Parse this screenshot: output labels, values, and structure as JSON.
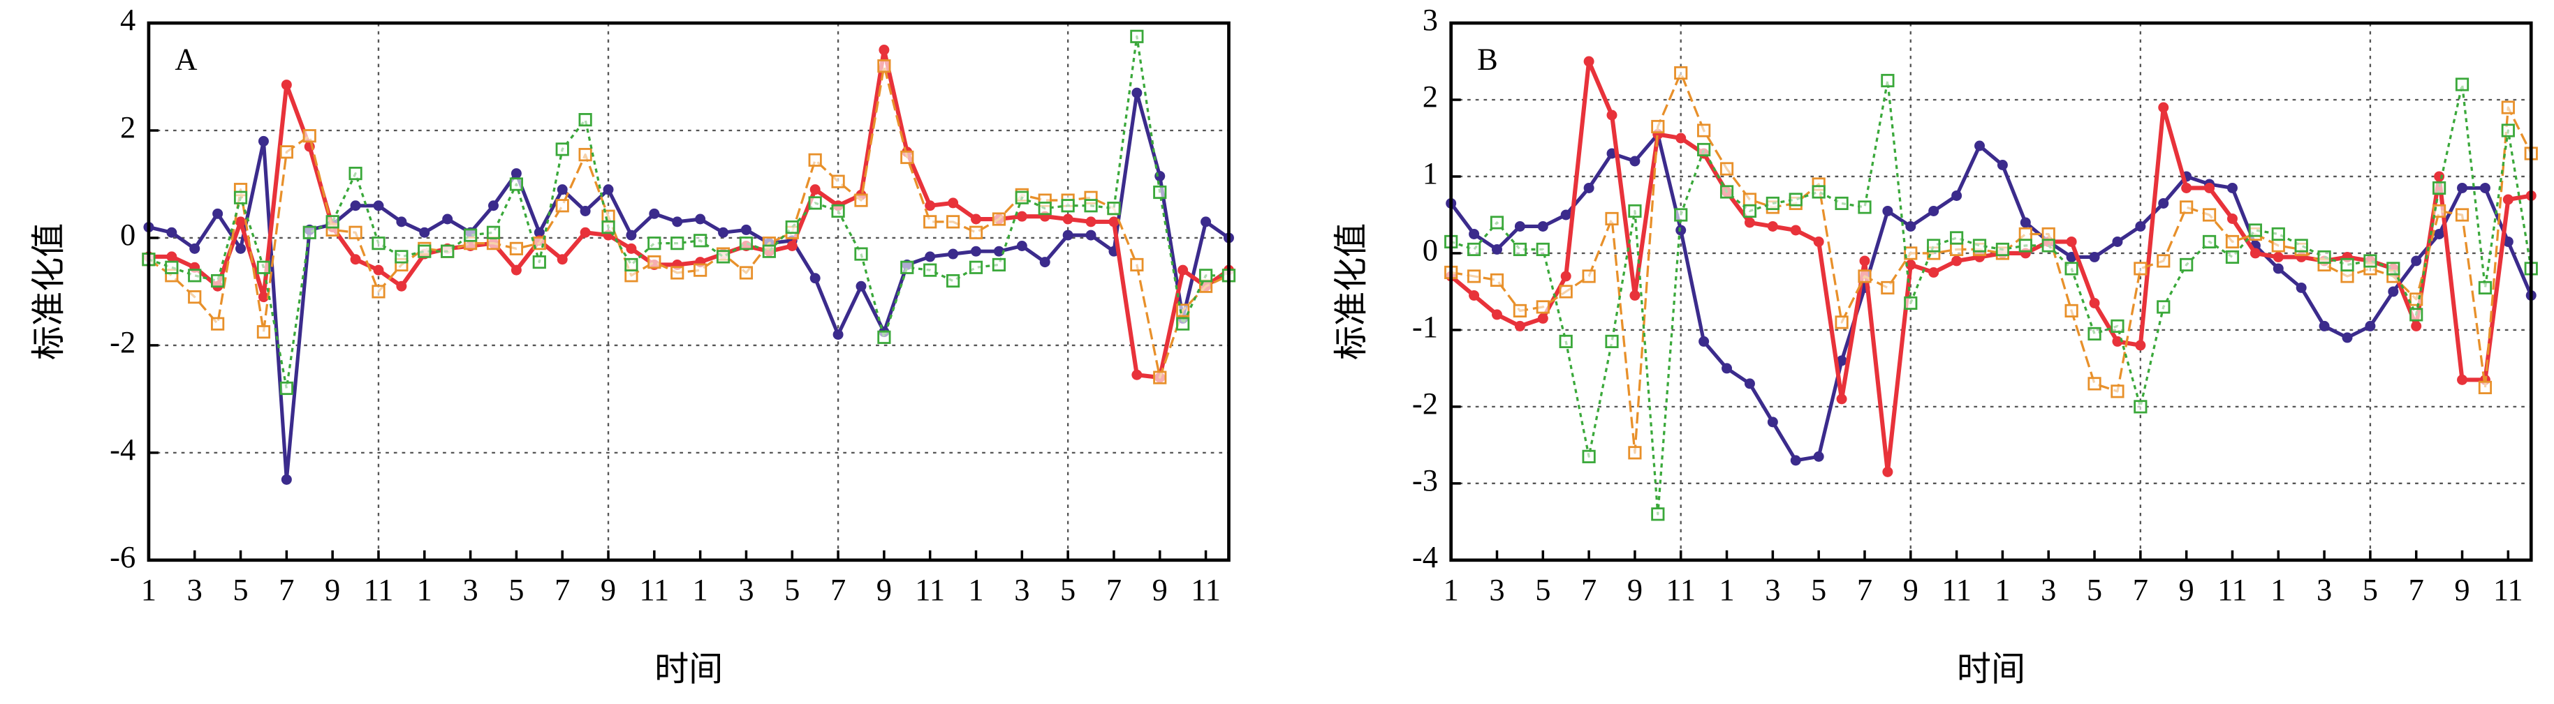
{
  "chart_data": [
    {
      "type": "line",
      "panel_label": "A",
      "ylabel": "标准化值",
      "xlabel": "时间",
      "x": [
        1,
        2,
        3,
        4,
        5,
        6,
        7,
        8,
        9,
        10,
        11,
        12,
        13,
        14,
        15,
        16,
        17,
        18,
        19,
        20,
        21,
        22,
        23,
        24,
        25,
        26,
        27,
        28,
        29,
        30,
        31,
        32,
        33,
        34,
        35,
        36,
        37,
        38,
        39,
        40,
        41,
        42,
        43,
        44,
        45,
        46,
        47,
        48
      ],
      "xlim": [
        1,
        48
      ],
      "xticks": [
        1,
        3,
        5,
        7,
        9,
        11,
        {
          "value": 13,
          "label": "1"
        },
        {
          "value": 15,
          "label": "3"
        },
        {
          "value": 17,
          "label": "5"
        },
        {
          "value": 19,
          "label": "7"
        },
        {
          "value": 21,
          "label": "9"
        },
        {
          "value": 23,
          "label": "11"
        },
        {
          "value": 25,
          "label": "1"
        },
        {
          "value": 27,
          "label": "3"
        },
        {
          "value": 29,
          "label": "5"
        },
        {
          "value": 31,
          "label": "7"
        },
        {
          "value": 33,
          "label": "9"
        },
        {
          "value": 35,
          "label": "11"
        },
        {
          "value": 37,
          "label": "1"
        },
        {
          "value": 39,
          "label": "3"
        },
        {
          "value": 41,
          "label": "5"
        },
        {
          "value": 43,
          "label": "7"
        },
        {
          "value": 45,
          "label": "9"
        },
        {
          "value": 47,
          "label": "11"
        }
      ],
      "xgrid": [
        11,
        21,
        31,
        41
      ],
      "ylim": [
        -6,
        4
      ],
      "yticks": [
        -6,
        -4,
        -2,
        0,
        2,
        4
      ],
      "grid": true,
      "series": [
        {
          "color": "#3b2b8c",
          "marker": "circle",
          "dash": "solid",
          "values": [
            0.2,
            0.1,
            -0.2,
            0.45,
            -0.2,
            1.8,
            -4.5,
            0.15,
            0.25,
            0.6,
            0.6,
            0.3,
            0.1,
            0.35,
            0.1,
            0.6,
            1.2,
            0.1,
            0.9,
            0.5,
            0.9,
            0.05,
            0.45,
            0.3,
            0.35,
            0.1,
            0.15,
            -0.1,
            -0.05,
            -0.75,
            -1.8,
            -0.9,
            -1.75,
            -0.5,
            -0.35,
            -0.3,
            -0.25,
            -0.25,
            -0.15,
            -0.45,
            0.05,
            0.05,
            -0.25,
            2.7,
            1.15,
            -1.5,
            0.3,
            0
          ]
        },
        {
          "color": "#e8323a",
          "marker": "circle",
          "dash": "solid",
          "values": [
            -0.35,
            -0.35,
            -0.55,
            -0.9,
            0.3,
            -1.1,
            2.85,
            1.7,
            0.2,
            -0.4,
            -0.6,
            -0.9,
            -0.3,
            -0.2,
            -0.15,
            -0.1,
            -0.6,
            -0.05,
            -0.4,
            0.1,
            0.05,
            -0.2,
            -0.5,
            -0.5,
            -0.45,
            -0.3,
            -0.15,
            -0.25,
            -0.15,
            0.9,
            0.6,
            0.8,
            3.5,
            1.6,
            0.6,
            0.65,
            0.35,
            0.35,
            0.4,
            0.4,
            0.35,
            0.3,
            0.3,
            -2.55,
            -2.6,
            -0.6,
            -0.9,
            -0.6
          ]
        },
        {
          "color": "#e8902a",
          "marker": "square",
          "dash": "dashed",
          "values": [
            -0.4,
            -0.7,
            -1.1,
            -1.6,
            0.9,
            -1.75,
            1.6,
            1.9,
            0.15,
            0.1,
            -1.0,
            -0.5,
            -0.2,
            -0.25,
            -0.1,
            -0.1,
            -0.2,
            -0.1,
            0.6,
            1.55,
            0.4,
            -0.7,
            -0.45,
            -0.65,
            -0.6,
            -0.3,
            -0.65,
            -0.1,
            0.1,
            1.45,
            1.05,
            0.7,
            3.2,
            1.5,
            0.3,
            0.3,
            0.1,
            0.35,
            0.8,
            0.7,
            0.7,
            0.75,
            0.55,
            -0.5,
            -2.6,
            -1.35,
            -0.9,
            -0.7
          ]
        },
        {
          "color": "#3aa83a",
          "marker": "square",
          "dash": "dotted",
          "values": [
            -0.4,
            -0.55,
            -0.7,
            -0.8,
            0.75,
            -0.55,
            -2.8,
            0.1,
            0.3,
            1.2,
            -0.1,
            -0.35,
            -0.25,
            -0.25,
            0.05,
            0.1,
            1.0,
            -0.45,
            1.65,
            2.2,
            0.2,
            -0.5,
            -0.1,
            -0.1,
            -0.05,
            -0.35,
            -0.1,
            -0.25,
            0.2,
            0.65,
            0.5,
            -0.3,
            -1.85,
            -0.55,
            -0.6,
            -0.8,
            -0.55,
            -0.5,
            0.75,
            0.55,
            0.6,
            0.6,
            0.55,
            3.75,
            0.85,
            -1.6,
            -0.7,
            -0.7
          ]
        }
      ]
    },
    {
      "type": "line",
      "panel_label": "B",
      "ylabel": "标准化值",
      "xlabel": "时间",
      "x": [
        1,
        2,
        3,
        4,
        5,
        6,
        7,
        8,
        9,
        10,
        11,
        12,
        13,
        14,
        15,
        16,
        17,
        18,
        19,
        20,
        21,
        22,
        23,
        24,
        25,
        26,
        27,
        28,
        29,
        30,
        31,
        32,
        33,
        34,
        35,
        36,
        37,
        38,
        39,
        40,
        41,
        42,
        43,
        44,
        45,
        46,
        47,
        48
      ],
      "xlim": [
        1,
        48
      ],
      "xticks": [
        1,
        3,
        5,
        7,
        9,
        11,
        {
          "value": 13,
          "label": "1"
        },
        {
          "value": 15,
          "label": "3"
        },
        {
          "value": 17,
          "label": "5"
        },
        {
          "value": 19,
          "label": "7"
        },
        {
          "value": 21,
          "label": "9"
        },
        {
          "value": 23,
          "label": "11"
        },
        {
          "value": 25,
          "label": "1"
        },
        {
          "value": 27,
          "label": "3"
        },
        {
          "value": 29,
          "label": "5"
        },
        {
          "value": 31,
          "label": "7"
        },
        {
          "value": 33,
          "label": "9"
        },
        {
          "value": 35,
          "label": "11"
        },
        {
          "value": 37,
          "label": "1"
        },
        {
          "value": 39,
          "label": "3"
        },
        {
          "value": 41,
          "label": "5"
        },
        {
          "value": 43,
          "label": "7"
        },
        {
          "value": 45,
          "label": "9"
        },
        {
          "value": 47,
          "label": "11"
        }
      ],
      "xgrid": [
        11,
        21,
        31,
        41
      ],
      "ylim": [
        -4,
        3
      ],
      "yticks": [
        -4,
        -3,
        -2,
        -1,
        0,
        1,
        2,
        3
      ],
      "grid": true,
      "series": [
        {
          "color": "#3b2b8c",
          "marker": "circle",
          "dash": "solid",
          "values": [
            0.65,
            0.25,
            0.05,
            0.35,
            0.35,
            0.5,
            0.85,
            1.3,
            1.2,
            1.55,
            0.3,
            -1.15,
            -1.5,
            -1.7,
            -2.2,
            -2.7,
            -2.65,
            -1.4,
            -0.45,
            0.55,
            0.35,
            0.55,
            0.75,
            1.4,
            1.15,
            0.4,
            0.15,
            -0.05,
            -0.05,
            0.15,
            0.35,
            0.65,
            1.0,
            0.9,
            0.85,
            0.1,
            -0.2,
            -0.45,
            -0.95,
            -1.1,
            -0.95,
            -0.5,
            -0.1,
            0.25,
            0.85,
            0.85,
            0.15,
            -0.55
          ]
        },
        {
          "color": "#e8323a",
          "marker": "circle",
          "dash": "solid",
          "values": [
            -0.3,
            -0.55,
            -0.8,
            -0.95,
            -0.85,
            -0.3,
            2.5,
            1.8,
            -0.55,
            1.55,
            1.5,
            1.3,
            0.8,
            0.4,
            0.35,
            0.3,
            0.15,
            -1.9,
            -0.1,
            -2.85,
            -0.15,
            -0.25,
            -0.1,
            -0.05,
            0,
            0,
            0.15,
            0.15,
            -0.65,
            -1.15,
            -1.2,
            1.9,
            0.85,
            0.85,
            0.45,
            0,
            -0.05,
            -0.05,
            -0.1,
            -0.05,
            -0.1,
            -0.2,
            -0.95,
            1.0,
            -1.65,
            -1.65,
            0.7,
            0.75
          ]
        },
        {
          "color": "#e8902a",
          "marker": "square",
          "dash": "dashed",
          "values": [
            -0.25,
            -0.3,
            -0.35,
            -0.75,
            -0.7,
            -0.5,
            -0.3,
            0.45,
            -2.6,
            1.65,
            2.35,
            1.6,
            1.1,
            0.7,
            0.6,
            0.65,
            0.9,
            -0.9,
            -0.3,
            -0.45,
            0,
            0,
            0.05,
            0.05,
            0,
            0.25,
            0.25,
            -0.75,
            -1.7,
            -1.8,
            -0.2,
            -0.1,
            0.6,
            0.5,
            0.15,
            0.25,
            0.1,
            0.05,
            -0.15,
            -0.3,
            -0.2,
            -0.3,
            -0.6,
            0.55,
            0.5,
            -1.75,
            1.9,
            1.3
          ]
        },
        {
          "color": "#3aa83a",
          "marker": "square",
          "dash": "dotted",
          "values": [
            0.15,
            0.05,
            0.4,
            0.05,
            0.05,
            -1.15,
            -2.65,
            -1.15,
            0.55,
            -3.4,
            0.5,
            1.35,
            0.8,
            0.55,
            0.65,
            0.7,
            0.8,
            0.65,
            0.6,
            2.25,
            -0.65,
            0.1,
            0.2,
            0.1,
            0.05,
            0.1,
            0.1,
            -0.2,
            -1.05,
            -0.95,
            -2.0,
            -0.7,
            -0.15,
            0.15,
            -0.05,
            0.3,
            0.25,
            0.1,
            -0.05,
            -0.15,
            -0.1,
            -0.2,
            -0.8,
            0.85,
            2.2,
            -0.45,
            1.6,
            -0.2
          ]
        }
      ]
    }
  ]
}
